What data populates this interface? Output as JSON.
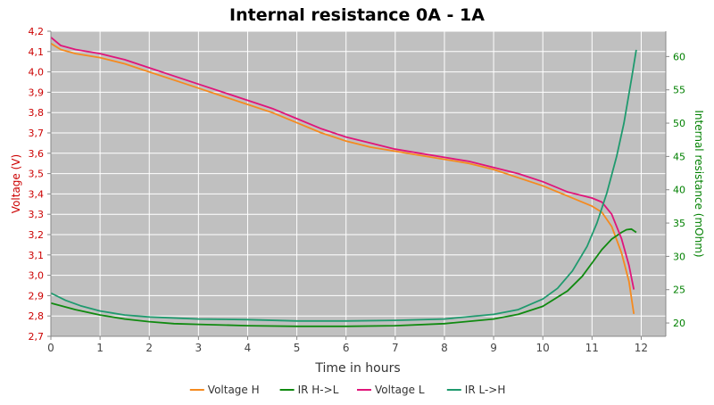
{
  "chart_data": {
    "type": "line",
    "title": "Internal resistance  0A - 1A",
    "xlabel": "Time in hours",
    "ylabel_left": "Voltage (V)",
    "ylabel_right": "Internal resistance (mOhm)",
    "xlim": [
      0,
      12.5
    ],
    "ylim_left": [
      2.7,
      4.2
    ],
    "ylim_right": [
      18.0,
      63.8
    ],
    "xticks": [
      "0",
      "1",
      "2",
      "3",
      "4",
      "5",
      "6",
      "7",
      "8",
      "9",
      "10",
      "11",
      "12"
    ],
    "yticks_left": [
      "2,7",
      "2,8",
      "2,9",
      "3,0",
      "3,1",
      "3,2",
      "3,3",
      "3,4",
      "3,5",
      "3,6",
      "3,7",
      "3,8",
      "3,9",
      "4,0",
      "4,1",
      "4,2"
    ],
    "yticks_right": [
      "20",
      "25",
      "30",
      "35",
      "40",
      "45",
      "50",
      "55",
      "60"
    ],
    "grid": true,
    "legend_position": "bottom",
    "colors": {
      "plot_background": "#c0c0c0",
      "grid": "#ffffff",
      "left_axis": "#cc0000",
      "right_axis": "#008000",
      "title": "#000000"
    },
    "series": [
      {
        "name": "Voltage H",
        "axis": "left",
        "color": "#f58a1f",
        "x": [
          0,
          0.2,
          0.5,
          1,
          1.5,
          2,
          2.5,
          3,
          3.5,
          4,
          4.5,
          5,
          5.5,
          6,
          6.5,
          7,
          7.5,
          8,
          8.5,
          9,
          9.5,
          10,
          10.5,
          11,
          11.2,
          11.4,
          11.6,
          11.75,
          11.85
        ],
        "y": [
          4.14,
          4.11,
          4.09,
          4.07,
          4.04,
          4.0,
          3.96,
          3.92,
          3.88,
          3.84,
          3.8,
          3.75,
          3.7,
          3.66,
          3.63,
          3.61,
          3.59,
          3.57,
          3.55,
          3.52,
          3.48,
          3.44,
          3.39,
          3.34,
          3.31,
          3.24,
          3.11,
          2.97,
          2.81
        ]
      },
      {
        "name": "IR H->L",
        "axis": "right",
        "color": "#108a10",
        "x": [
          0,
          0.5,
          1,
          1.5,
          2,
          2.5,
          3,
          4,
          5,
          6,
          7,
          8,
          9,
          9.5,
          10,
          10.5,
          10.8,
          11,
          11.2,
          11.4,
          11.6,
          11.7,
          11.8,
          11.9
        ],
        "y": [
          23.0,
          22.0,
          21.2,
          20.6,
          20.2,
          19.9,
          19.8,
          19.6,
          19.5,
          19.5,
          19.6,
          19.9,
          20.6,
          21.3,
          22.5,
          24.8,
          27.0,
          29.0,
          31.0,
          32.6,
          33.6,
          34.0,
          34.1,
          33.6
        ]
      },
      {
        "name": "Voltage L",
        "axis": "left",
        "color": "#e0157a",
        "x": [
          0,
          0.2,
          0.5,
          1,
          1.5,
          2,
          2.5,
          3,
          3.5,
          4,
          4.5,
          5,
          5.5,
          6,
          6.5,
          7,
          7.5,
          8,
          8.5,
          9,
          9.5,
          10,
          10.5,
          11,
          11.2,
          11.4,
          11.6,
          11.75,
          11.85
        ],
        "y": [
          4.17,
          4.13,
          4.11,
          4.09,
          4.06,
          4.02,
          3.98,
          3.94,
          3.9,
          3.86,
          3.82,
          3.77,
          3.72,
          3.68,
          3.65,
          3.62,
          3.6,
          3.58,
          3.56,
          3.53,
          3.5,
          3.46,
          3.41,
          3.38,
          3.36,
          3.3,
          3.18,
          3.05,
          2.93
        ]
      },
      {
        "name": "IR L->H",
        "axis": "right",
        "color": "#1f9a6e",
        "x": [
          0,
          0.3,
          0.6,
          1,
          1.5,
          2,
          3,
          4,
          5,
          6,
          7,
          8,
          9,
          9.5,
          10,
          10.3,
          10.6,
          10.9,
          11.1,
          11.3,
          11.5,
          11.65,
          11.8,
          11.9
        ],
        "y": [
          24.5,
          23.4,
          22.6,
          21.8,
          21.2,
          20.9,
          20.6,
          20.5,
          20.3,
          20.3,
          20.4,
          20.6,
          21.3,
          22.0,
          23.6,
          25.2,
          27.8,
          31.5,
          35.0,
          39.5,
          45.0,
          50.0,
          56.5,
          61.0
        ]
      }
    ]
  }
}
